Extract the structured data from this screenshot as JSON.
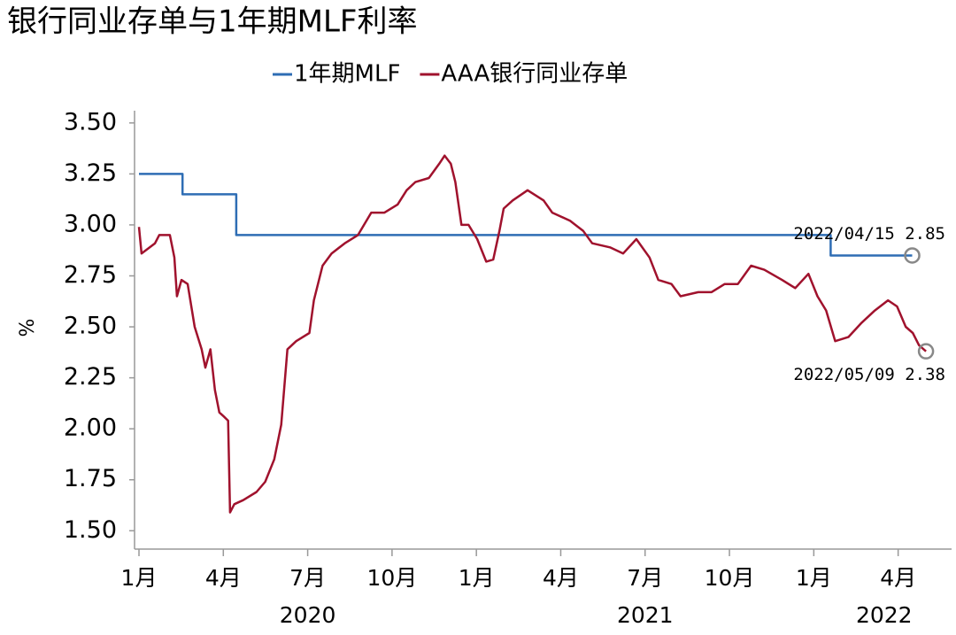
{
  "chart_data": {
    "type": "line",
    "title": "银行同业存单与1年期MLF利率",
    "y_label": "%",
    "xlim": [
      0,
      28.9
    ],
    "xticks": [
      {
        "value": 0,
        "label": "1月"
      },
      {
        "value": 3,
        "label": "4月"
      },
      {
        "value": 6,
        "label": "7月"
      },
      {
        "value": 9,
        "label": "10月"
      },
      {
        "value": 12,
        "label": "1月"
      },
      {
        "value": 15,
        "label": "4月"
      },
      {
        "value": 18,
        "label": "7月"
      },
      {
        "value": 21,
        "label": "10月"
      },
      {
        "value": 24,
        "label": "1月"
      },
      {
        "value": 27,
        "label": "4月"
      }
    ],
    "x_group_labels": [
      {
        "value": 6,
        "label": "2020"
      },
      {
        "value": 18,
        "label": "2021"
      },
      {
        "value": 26.5,
        "label": "2022"
      }
    ],
    "ylim": [
      1.41,
      3.56
    ],
    "yticks": [
      {
        "value": 1.5,
        "label": "1.50"
      },
      {
        "value": 1.75,
        "label": "1.75"
      },
      {
        "value": 2,
        "label": "2.00"
      },
      {
        "value": 2.25,
        "label": "2.25"
      },
      {
        "value": 2.5,
        "label": "2.50"
      },
      {
        "value": 2.75,
        "label": "2.75"
      },
      {
        "value": 3,
        "label": "3.00"
      },
      {
        "value": 3.25,
        "label": "3.25"
      },
      {
        "value": 3.5,
        "label": "3.50"
      }
    ],
    "series": [
      {
        "name": "1年期MLF",
        "color": "#2e6db4",
        "x": [
          0,
          1.55,
          1.55,
          3.46,
          3.46,
          24.6,
          24.6,
          27.5
        ],
        "values": [
          3.25,
          3.25,
          3.15,
          3.15,
          2.95,
          2.95,
          2.85,
          2.85
        ]
      },
      {
        "name": "AAA银行同业存单",
        "color": "#a0122d",
        "x": [
          0,
          0.09,
          0.57,
          0.72,
          1.1,
          1.26,
          1.35,
          1.51,
          1.73,
          1.98,
          2.23,
          2.36,
          2.54,
          2.7,
          2.86,
          3.02,
          3.17,
          3.24,
          3.39,
          3.71,
          4.18,
          4.49,
          4.81,
          5.06,
          5.28,
          5.59,
          6.06,
          6.22,
          6.53,
          6.85,
          7.32,
          7.79,
          8.26,
          8.73,
          9.2,
          9.52,
          9.83,
          10.31,
          10.68,
          10.87,
          11.09,
          11.25,
          11.47,
          11.72,
          12.03,
          12.35,
          12.6,
          12.82,
          12.97,
          13.29,
          13.82,
          14.39,
          14.7,
          15.33,
          15.8,
          16.12,
          16.75,
          17.22,
          17.69,
          18.16,
          18.47,
          18.94,
          19.26,
          19.89,
          20.36,
          20.83,
          21.3,
          21.77,
          22.24,
          22.87,
          23.34,
          23.81,
          24.13,
          24.44,
          24.76,
          25.23,
          25.7,
          26.17,
          26.64,
          26.96,
          27.27,
          27.52,
          27.74,
          27.99
        ],
        "values": [
          2.99,
          2.86,
          2.91,
          2.95,
          2.95,
          2.84,
          2.65,
          2.73,
          2.71,
          2.5,
          2.39,
          2.3,
          2.39,
          2.19,
          2.08,
          2.06,
          2.04,
          1.59,
          1.63,
          1.65,
          1.69,
          1.74,
          1.85,
          2.02,
          2.39,
          2.43,
          2.47,
          2.63,
          2.8,
          2.86,
          2.91,
          2.95,
          3.06,
          3.06,
          3.1,
          3.17,
          3.21,
          3.23,
          3.3,
          3.34,
          3.3,
          3.21,
          3,
          3,
          2.93,
          2.82,
          2.83,
          2.97,
          3.08,
          3.12,
          3.17,
          3.12,
          3.06,
          3.02,
          2.97,
          2.91,
          2.89,
          2.86,
          2.93,
          2.84,
          2.73,
          2.71,
          2.65,
          2.67,
          2.67,
          2.71,
          2.71,
          2.8,
          2.78,
          2.73,
          2.69,
          2.76,
          2.65,
          2.58,
          2.43,
          2.45,
          2.52,
          2.58,
          2.63,
          2.6,
          2.5,
          2.47,
          2.41,
          2.38
        ]
      }
    ],
    "annotations": [
      "2022/04/15  2.85",
      "2022/05/09  2.38"
    ]
  }
}
